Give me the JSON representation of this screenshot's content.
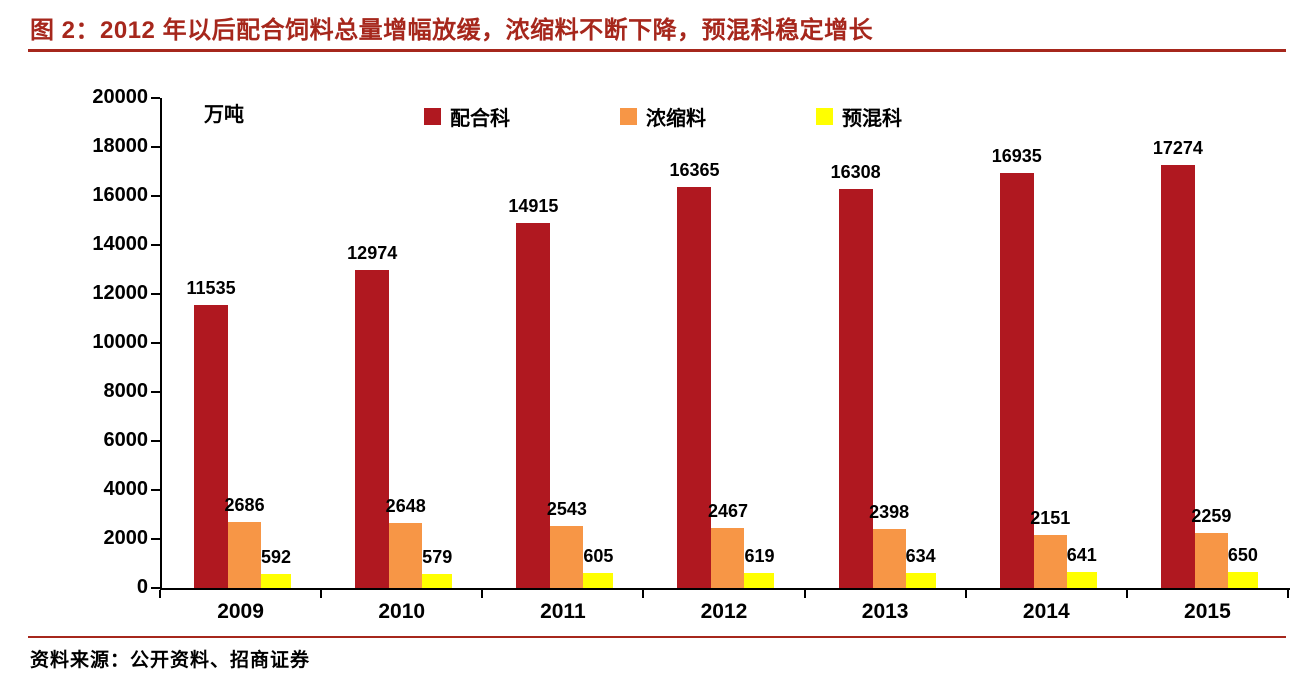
{
  "title": "图 2：2012 年以后配合饲料总量增幅放缓，浓缩料不断下降，预混科稳定增长",
  "source": "资料来源：公开资料、招商证券",
  "colors": {
    "accent": "#A6271C",
    "axis": "#000000",
    "label_text": "#000000",
    "background": "#FFFFFF"
  },
  "chart_data": {
    "type": "bar",
    "title": "2012 年以后配合饲料总量增幅放缓，浓缩料不断下降，预混科稳定增长",
    "unit": "万吨",
    "xlabel": "",
    "ylabel": "万吨",
    "categories": [
      "2009",
      "2010",
      "2011",
      "2012",
      "2013",
      "2014",
      "2015"
    ],
    "series": [
      {
        "name": "配合科",
        "color": "#B01820",
        "values": [
          11535,
          12974,
          14915,
          16365,
          16308,
          16935,
          17274
        ]
      },
      {
        "name": "浓缩料",
        "color": "#F79646",
        "values": [
          2686,
          2648,
          2543,
          2467,
          2398,
          2151,
          2259
        ]
      },
      {
        "name": "预混科",
        "color": "#FFFF00",
        "values": [
          592,
          579,
          605,
          619,
          634,
          641,
          650
        ]
      }
    ],
    "ylim": [
      0,
      20000
    ],
    "yticks": [
      0,
      2000,
      4000,
      6000,
      8000,
      10000,
      12000,
      14000,
      16000,
      18000,
      20000
    ],
    "legend_position": "top",
    "grid": false,
    "data_labels": true
  }
}
